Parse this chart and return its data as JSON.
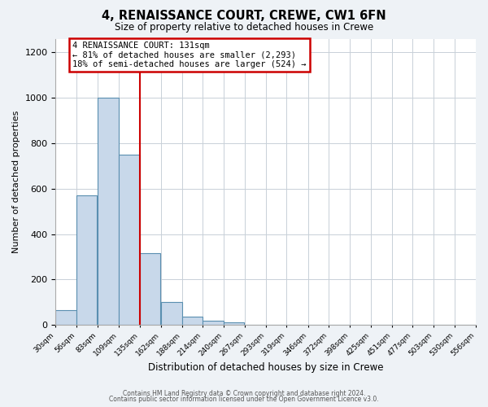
{
  "title": "4, RENAISSANCE COURT, CREWE, CW1 6FN",
  "subtitle": "Size of property relative to detached houses in Crewe",
  "xlabel": "Distribution of detached houses by size in Crewe",
  "ylabel": "Number of detached properties",
  "bar_left_edges": [
    30,
    56,
    83,
    109,
    135,
    162,
    188,
    214,
    240,
    267,
    293,
    319,
    346,
    372,
    398,
    425,
    451,
    477,
    503,
    530
  ],
  "bar_heights": [
    65,
    570,
    1000,
    750,
    315,
    100,
    38,
    20,
    10,
    0,
    0,
    0,
    0,
    0,
    0,
    0,
    0,
    0,
    0,
    0
  ],
  "bin_width": 26,
  "bar_color": "#c8d8ea",
  "bar_edge_color": "#5a8fb0",
  "vline_x": 135,
  "vline_color": "#cc0000",
  "ylim": [
    0,
    1260
  ],
  "yticks": [
    0,
    200,
    400,
    600,
    800,
    1000,
    1200
  ],
  "x_tick_labels": [
    "30sqm",
    "56sqm",
    "83sqm",
    "109sqm",
    "135sqm",
    "162sqm",
    "188sqm",
    "214sqm",
    "240sqm",
    "267sqm",
    "293sqm",
    "319sqm",
    "346sqm",
    "372sqm",
    "398sqm",
    "425sqm",
    "451sqm",
    "477sqm",
    "503sqm",
    "530sqm",
    "556sqm"
  ],
  "annotation_title": "4 RENAISSANCE COURT: 131sqm",
  "annotation_line1": "← 81% of detached houses are smaller (2,293)",
  "annotation_line2": "18% of semi-detached houses are larger (524) →",
  "annotation_box_color": "#cc0000",
  "footer_line1": "Contains HM Land Registry data © Crown copyright and database right 2024.",
  "footer_line2": "Contains public sector information licensed under the Open Government Licence v3.0.",
  "background_color": "#eef2f6",
  "plot_bg_color": "#ffffff",
  "grid_color": "#c8d0d8"
}
